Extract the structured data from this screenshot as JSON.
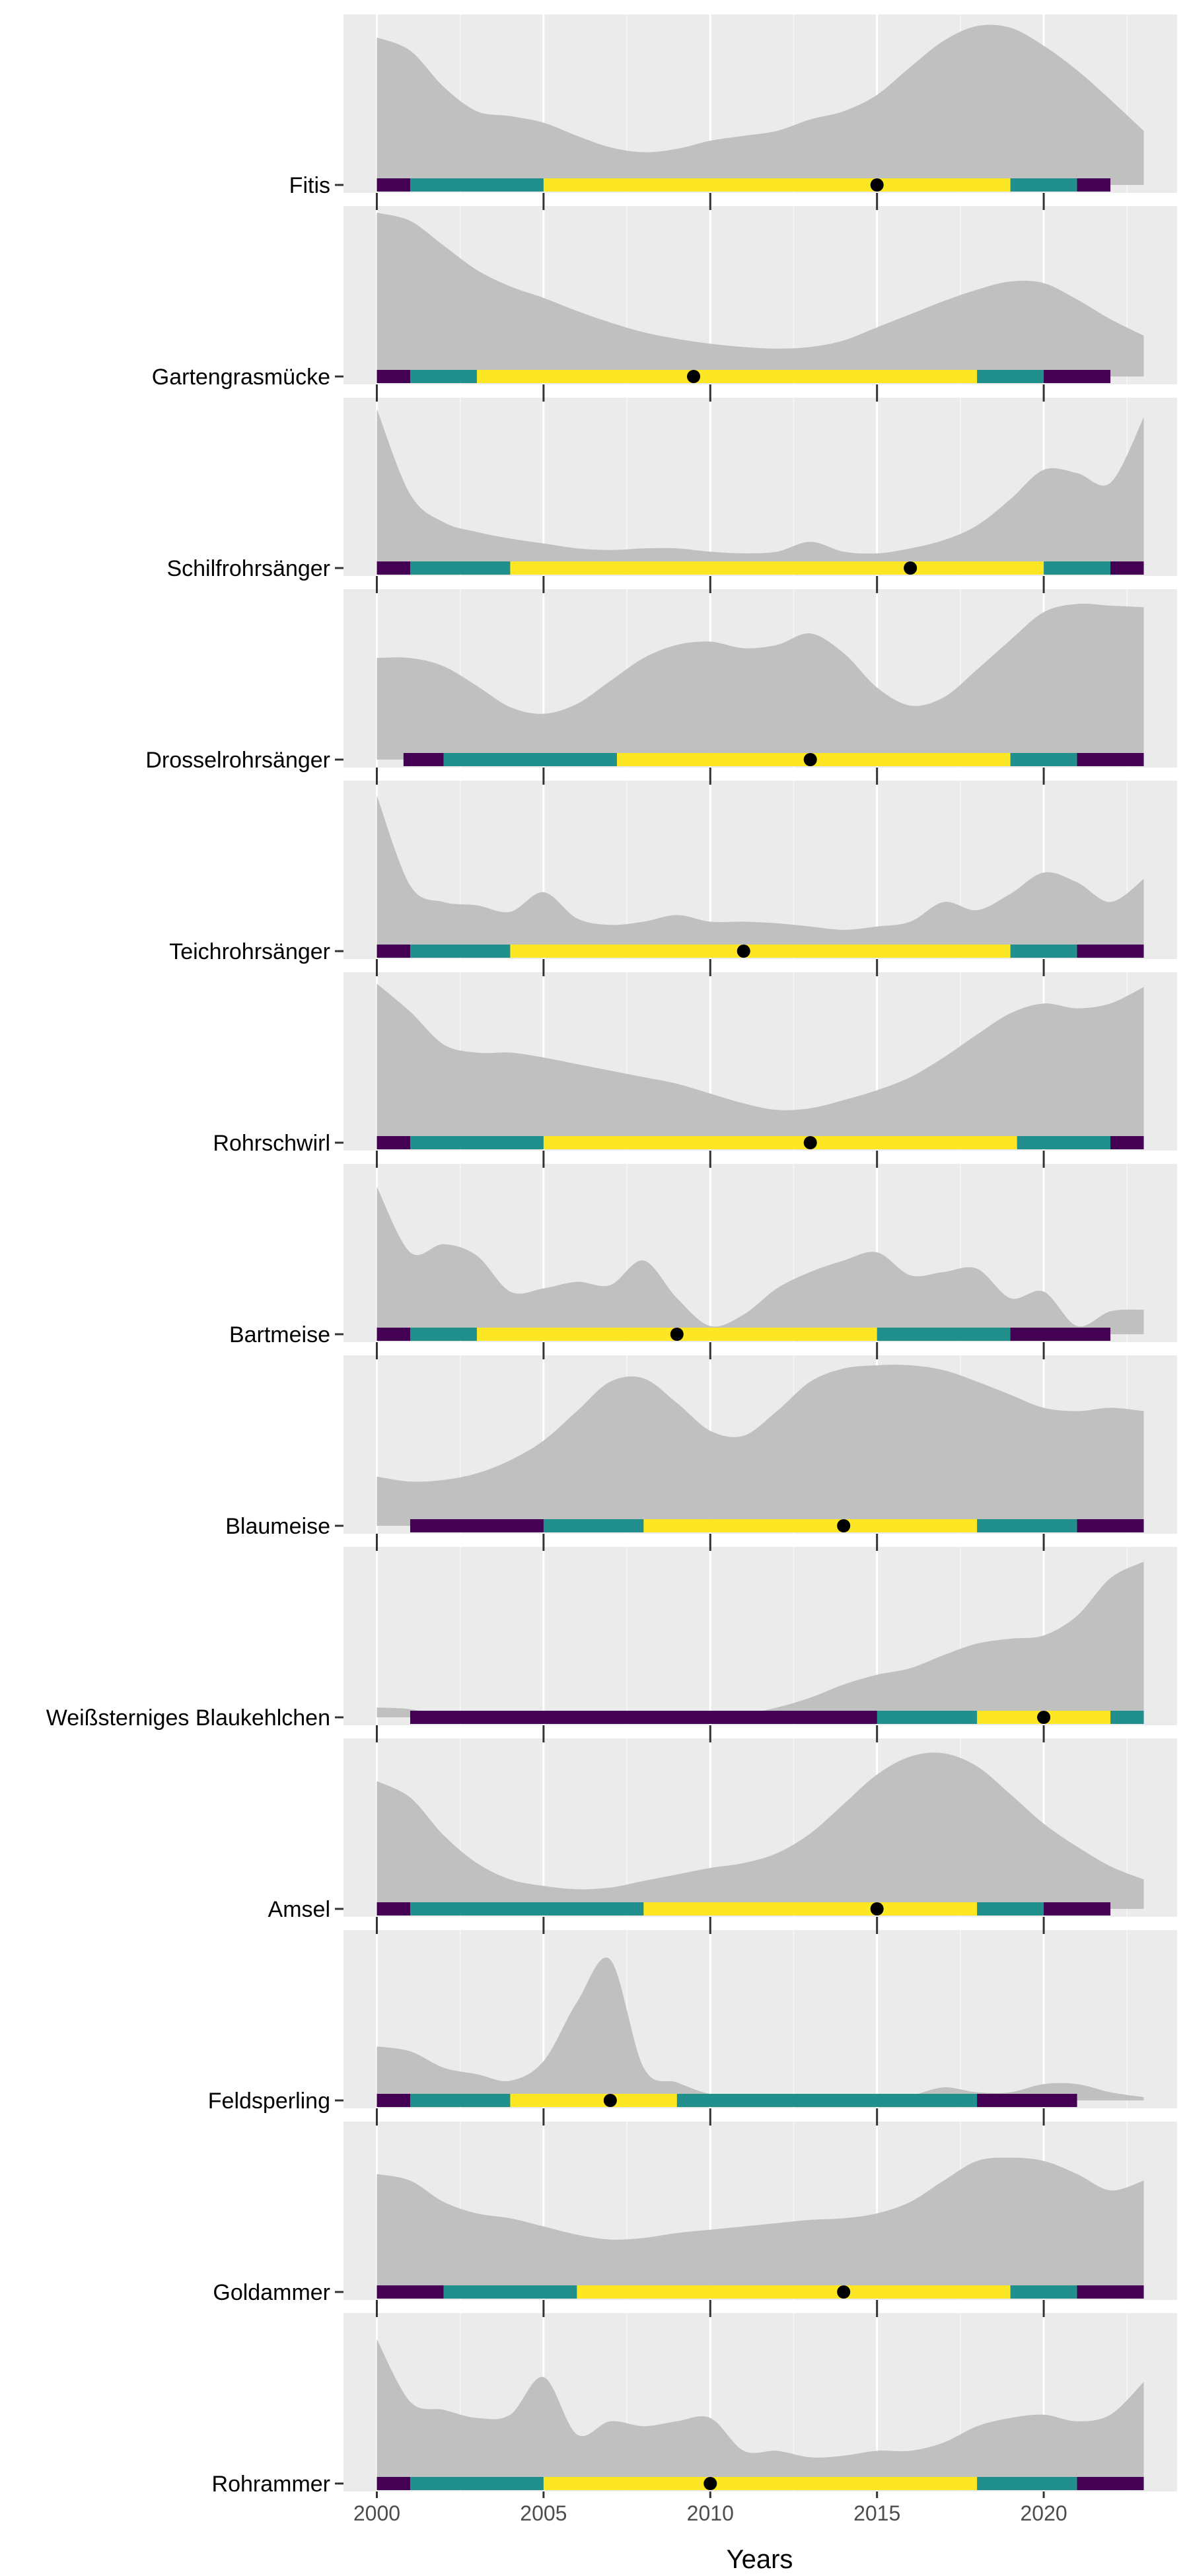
{
  "chart_data": {
    "type": "area",
    "xlabel": "Years",
    "ylabel": "",
    "title": "",
    "xlim": [
      1999,
      2024
    ],
    "x_ticks": [
      2000,
      2005,
      2010,
      2015,
      2020
    ],
    "grid": true,
    "panel_background": "#EBEBEB",
    "density_color": "#BEBEBE",
    "band_colors": {
      "outer": "#440154",
      "middle": "#21908C",
      "inner": "#FDE725"
    },
    "point_color": "#000000",
    "density_x": [
      2000,
      2001,
      2002,
      2003,
      2004,
      2005,
      2006,
      2007,
      2008,
      2009,
      2010,
      2011,
      2012,
      2013,
      2014,
      2015,
      2016,
      2017,
      2018,
      2019,
      2020,
      2021,
      2022,
      2023
    ],
    "panels": [
      {
        "label": "Fitis",
        "density_range": [
          2000,
          2023
        ],
        "density": [
          0.9,
          0.82,
          0.6,
          0.45,
          0.42,
          0.38,
          0.3,
          0.23,
          0.2,
          0.22,
          0.27,
          0.3,
          0.33,
          0.4,
          0.45,
          0.55,
          0.72,
          0.88,
          0.97,
          0.96,
          0.85,
          0.7,
          0.52,
          0.33
        ],
        "bands": [
          {
            "level": "outer",
            "from": 2000,
            "to": 2022
          },
          {
            "level": "middle",
            "from": 2001,
            "to": 2021
          },
          {
            "level": "inner",
            "from": 2005,
            "to": 2019
          }
        ],
        "point": 2015
      },
      {
        "label": "Gartengrasmücke",
        "density_range": [
          2000,
          2023
        ],
        "density": [
          1.0,
          0.95,
          0.8,
          0.65,
          0.55,
          0.48,
          0.4,
          0.33,
          0.27,
          0.23,
          0.2,
          0.18,
          0.17,
          0.18,
          0.22,
          0.3,
          0.38,
          0.46,
          0.53,
          0.58,
          0.57,
          0.47,
          0.35,
          0.25
        ],
        "bands": [
          {
            "level": "outer",
            "from": 2000,
            "to": 2022
          },
          {
            "level": "middle",
            "from": 2001,
            "to": 2020
          },
          {
            "level": "inner",
            "from": 2003,
            "to": 2018
          }
        ],
        "point": 2009.5
      },
      {
        "label": "Schilfrohrsänger",
        "density_range": [
          2000,
          2023
        ],
        "density": [
          0.97,
          0.45,
          0.28,
          0.22,
          0.18,
          0.15,
          0.12,
          0.11,
          0.12,
          0.12,
          0.1,
          0.09,
          0.1,
          0.16,
          0.1,
          0.09,
          0.12,
          0.17,
          0.26,
          0.42,
          0.6,
          0.58,
          0.52,
          0.92
        ],
        "bands": [
          {
            "level": "outer",
            "from": 2000,
            "to": 2023
          },
          {
            "level": "middle",
            "from": 2001,
            "to": 2022
          },
          {
            "level": "inner",
            "from": 2004,
            "to": 2020
          }
        ],
        "point": 2016
      },
      {
        "label": "Drosselrohrsänger",
        "density_range": [
          2000,
          2023
        ],
        "density": [
          0.62,
          0.62,
          0.57,
          0.45,
          0.32,
          0.28,
          0.34,
          0.48,
          0.62,
          0.7,
          0.72,
          0.68,
          0.7,
          0.77,
          0.65,
          0.44,
          0.33,
          0.38,
          0.55,
          0.73,
          0.9,
          0.95,
          0.94,
          0.93
        ],
        "bands": [
          {
            "level": "outer",
            "from": 2000.8,
            "to": 2023
          },
          {
            "level": "middle",
            "from": 2002,
            "to": 2021
          },
          {
            "level": "inner",
            "from": 2007.2,
            "to": 2019
          }
        ],
        "point": 2013
      },
      {
        "label": "Teichrohrsänger",
        "density_range": [
          2000,
          2023
        ],
        "density": [
          0.95,
          0.4,
          0.3,
          0.28,
          0.24,
          0.36,
          0.2,
          0.16,
          0.18,
          0.22,
          0.18,
          0.18,
          0.17,
          0.15,
          0.13,
          0.15,
          0.18,
          0.3,
          0.25,
          0.35,
          0.48,
          0.42,
          0.3,
          0.44
        ],
        "bands": [
          {
            "level": "outer",
            "from": 2000,
            "to": 2023
          },
          {
            "level": "middle",
            "from": 2001,
            "to": 2021
          },
          {
            "level": "inner",
            "from": 2004,
            "to": 2019
          }
        ],
        "point": 2011
      },
      {
        "label": "Rohrschwirl",
        "density_range": [
          2000,
          2023
        ],
        "density": [
          0.97,
          0.8,
          0.6,
          0.55,
          0.55,
          0.52,
          0.48,
          0.44,
          0.4,
          0.36,
          0.3,
          0.24,
          0.2,
          0.21,
          0.26,
          0.32,
          0.4,
          0.52,
          0.66,
          0.79,
          0.85,
          0.82,
          0.85,
          0.95
        ],
        "bands": [
          {
            "level": "outer",
            "from": 2000,
            "to": 2023
          },
          {
            "level": "middle",
            "from": 2001,
            "to": 2022
          },
          {
            "level": "inner",
            "from": 2005,
            "to": 2019.2
          }
        ],
        "point": 2013
      },
      {
        "label": "Bartmeise",
        "density_range": [
          2000,
          2023
        ],
        "density": [
          0.9,
          0.5,
          0.55,
          0.48,
          0.26,
          0.28,
          0.32,
          0.3,
          0.45,
          0.22,
          0.05,
          0.12,
          0.28,
          0.38,
          0.45,
          0.5,
          0.36,
          0.38,
          0.4,
          0.22,
          0.26,
          0.05,
          0.14,
          0.15
        ],
        "bands": [
          {
            "level": "outer",
            "from": 2000,
            "to": 2022
          },
          {
            "level": "middle",
            "from": 2001,
            "to": 2019
          },
          {
            "level": "inner",
            "from": 2003,
            "to": 2015
          }
        ],
        "point": 2009
      },
      {
        "label": "Blaumeise",
        "density_range": [
          2000,
          2023
        ],
        "density": [
          0.3,
          0.27,
          0.28,
          0.32,
          0.4,
          0.52,
          0.7,
          0.88,
          0.9,
          0.75,
          0.58,
          0.55,
          0.7,
          0.88,
          0.96,
          0.98,
          0.98,
          0.95,
          0.88,
          0.8,
          0.72,
          0.7,
          0.72,
          0.7
        ],
        "bands": [
          {
            "level": "outer",
            "from": 2001,
            "to": 2023
          },
          {
            "level": "middle",
            "from": 2005,
            "to": 2021
          },
          {
            "level": "inner",
            "from": 2008,
            "to": 2018
          }
        ],
        "point": 2014
      },
      {
        "label": "Weißsterniges Blaukehlchen",
        "density_range": [
          2000,
          2023
        ],
        "density": [
          0.06,
          0.05,
          0.01,
          0.0,
          0.0,
          0.0,
          0.0,
          0.0,
          0.0,
          0.0,
          0.0,
          0.02,
          0.06,
          0.12,
          0.2,
          0.26,
          0.3,
          0.38,
          0.45,
          0.48,
          0.5,
          0.62,
          0.85,
          0.95
        ],
        "bands": [
          {
            "level": "outer",
            "from": 2001,
            "to": 2023
          },
          {
            "level": "middle",
            "from": 2015,
            "to": 2023
          },
          {
            "level": "inner",
            "from": 2018,
            "to": 2022
          }
        ],
        "point": 2020
      },
      {
        "label": "Amsel",
        "density_range": [
          2000,
          2023
        ],
        "density": [
          0.78,
          0.68,
          0.45,
          0.28,
          0.18,
          0.14,
          0.12,
          0.13,
          0.17,
          0.21,
          0.25,
          0.28,
          0.34,
          0.46,
          0.64,
          0.82,
          0.93,
          0.95,
          0.87,
          0.7,
          0.52,
          0.38,
          0.26,
          0.18
        ],
        "bands": [
          {
            "level": "outer",
            "from": 2000,
            "to": 2022
          },
          {
            "level": "middle",
            "from": 2001,
            "to": 2020
          },
          {
            "level": "inner",
            "from": 2008,
            "to": 2018
          }
        ],
        "point": 2015
      },
      {
        "label": "Feldsperling",
        "density_range": [
          2000,
          2023
        ],
        "density": [
          0.33,
          0.3,
          0.2,
          0.16,
          0.12,
          0.24,
          0.6,
          0.86,
          0.2,
          0.11,
          0.04,
          0.03,
          0.03,
          0.02,
          0.02,
          0.02,
          0.03,
          0.08,
          0.05,
          0.05,
          0.1,
          0.1,
          0.05,
          0.02
        ],
        "bands": [
          {
            "level": "outer",
            "from": 2000,
            "to": 2021
          },
          {
            "level": "middle",
            "from": 2001,
            "to": 2018
          },
          {
            "level": "inner",
            "from": 2004,
            "to": 2009
          }
        ],
        "point": 2007
      },
      {
        "label": "Goldammer",
        "density_range": [
          2000,
          2023
        ],
        "density": [
          0.72,
          0.68,
          0.55,
          0.48,
          0.45,
          0.4,
          0.35,
          0.32,
          0.33,
          0.36,
          0.38,
          0.4,
          0.42,
          0.44,
          0.45,
          0.48,
          0.55,
          0.68,
          0.8,
          0.82,
          0.8,
          0.72,
          0.62,
          0.68
        ],
        "bands": [
          {
            "level": "outer",
            "from": 2000,
            "to": 2023
          },
          {
            "level": "middle",
            "from": 2002,
            "to": 2021
          },
          {
            "level": "inner",
            "from": 2006,
            "to": 2019
          }
        ],
        "point": 2014
      },
      {
        "label": "Rohrammer",
        "density_range": [
          2000,
          2023
        ],
        "density": [
          0.88,
          0.5,
          0.45,
          0.4,
          0.42,
          0.65,
          0.3,
          0.38,
          0.35,
          0.38,
          0.4,
          0.2,
          0.2,
          0.16,
          0.17,
          0.2,
          0.2,
          0.25,
          0.35,
          0.4,
          0.42,
          0.38,
          0.42,
          0.62
        ],
        "bands": [
          {
            "level": "outer",
            "from": 2000,
            "to": 2023
          },
          {
            "level": "middle",
            "from": 2001,
            "to": 2021
          },
          {
            "level": "inner",
            "from": 2005,
            "to": 2018
          }
        ],
        "point": 2010
      }
    ]
  }
}
